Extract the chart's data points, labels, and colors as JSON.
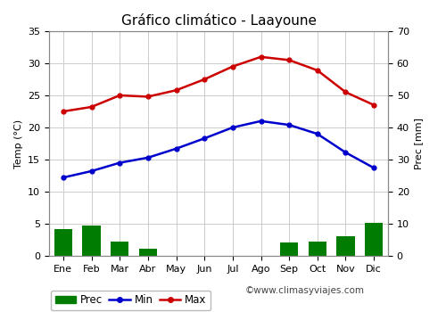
{
  "title": "Gráfico climático - Laayoune",
  "months": [
    "Ene",
    "Feb",
    "Mar",
    "Abr",
    "May",
    "Jun",
    "Jul",
    "Ago",
    "Sep",
    "Oct",
    "Nov",
    "Dic"
  ],
  "temp_max": [
    22.5,
    23.2,
    25.0,
    24.8,
    25.8,
    27.5,
    29.5,
    31.0,
    30.5,
    28.9,
    25.5,
    23.5
  ],
  "temp_min": [
    12.2,
    13.2,
    14.5,
    15.3,
    16.7,
    18.3,
    20.0,
    21.0,
    20.4,
    19.0,
    16.1,
    13.7
  ],
  "precip": [
    4.1,
    4.7,
    2.2,
    1.1,
    0.0,
    0.0,
    0.0,
    0.0,
    2.1,
    2.2,
    3.1,
    5.1
  ],
  "temp_color_max": "#cc0000",
  "temp_color_min": "#0000cc",
  "precip_color": "#007d00",
  "left_ylim": [
    0,
    35
  ],
  "left_yticks": [
    0,
    5,
    10,
    15,
    20,
    25,
    30,
    35
  ],
  "right_ylim": [
    0,
    70
  ],
  "right_yticks": [
    0,
    10,
    20,
    30,
    40,
    50,
    60,
    70
  ],
  "ylabel_left": "Temp (°C)",
  "ylabel_right": "Prec [mm]",
  "watermark": "©www.climasyviajes.com",
  "background_color": "#ffffff",
  "grid_color": "#cccccc",
  "title_fontsize": 11,
  "axis_fontsize": 8,
  "legend_fontsize": 8.5
}
